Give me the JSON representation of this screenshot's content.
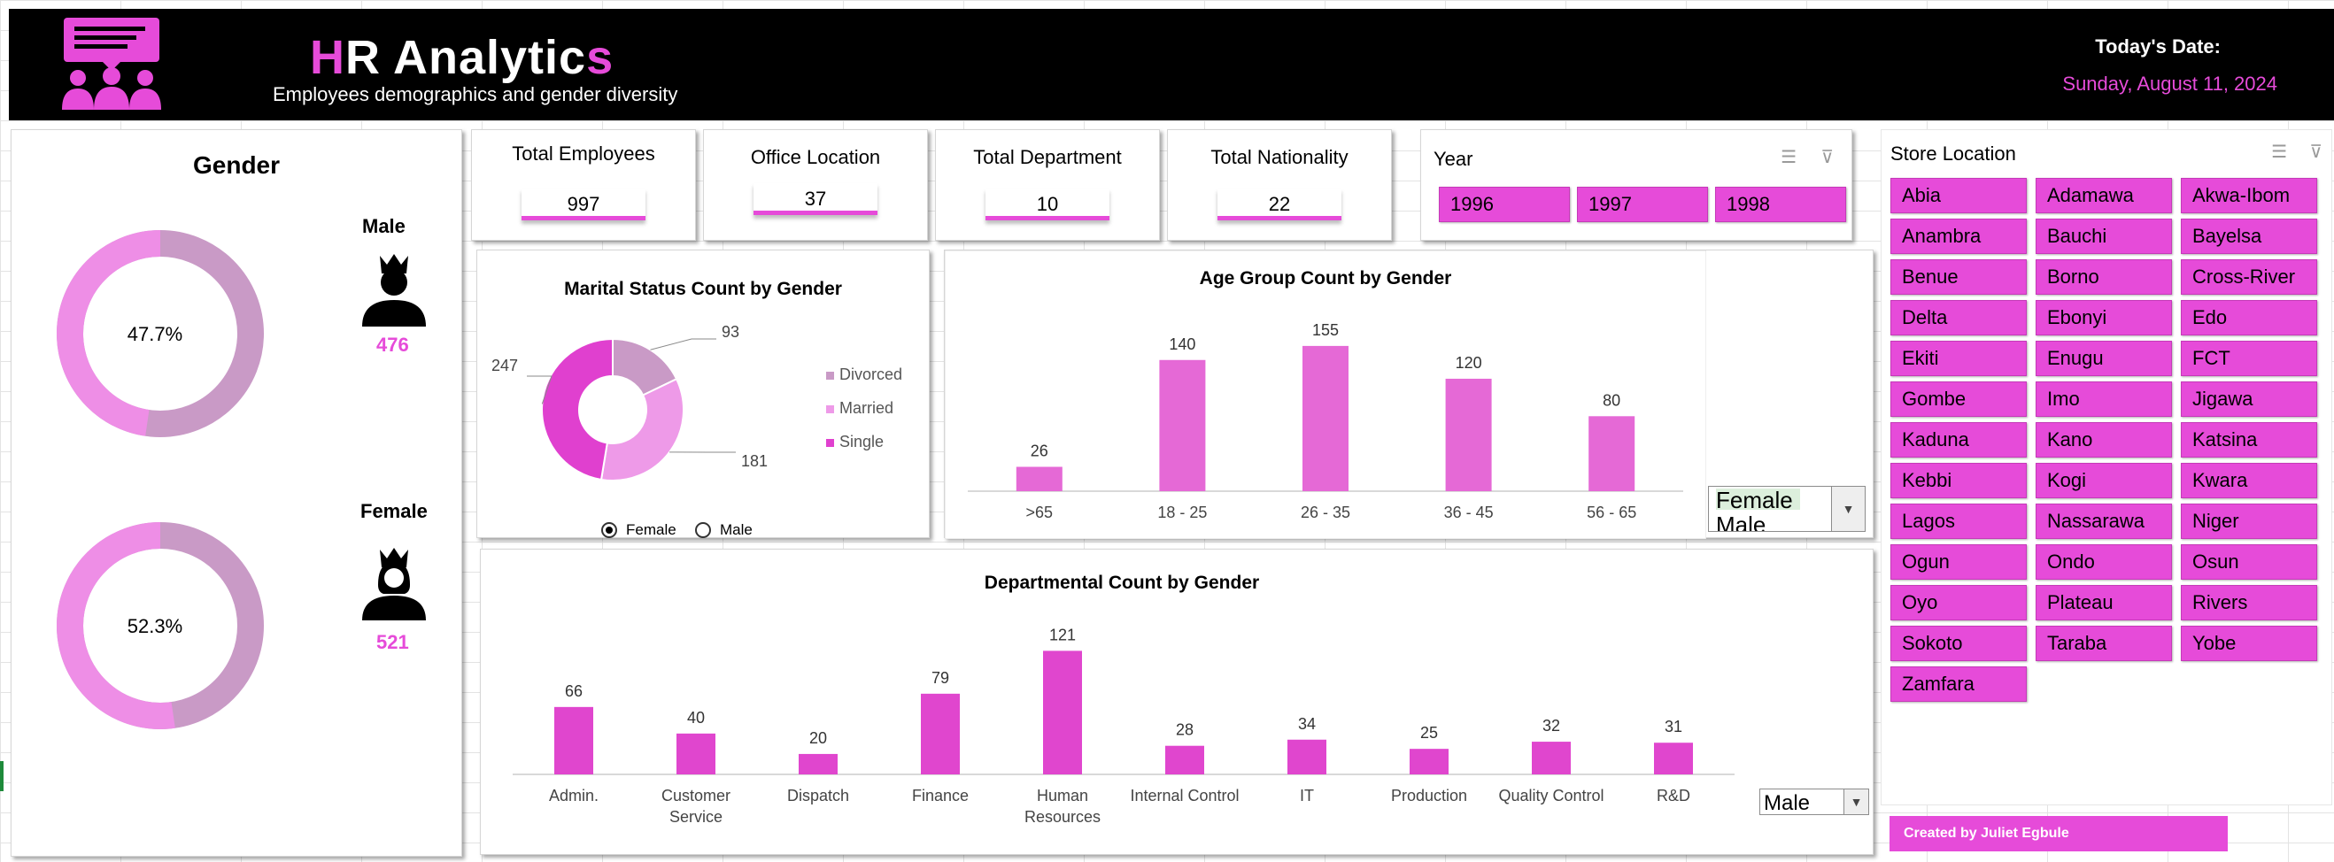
{
  "header": {
    "title_parts": [
      "H",
      "R Analytic",
      "s"
    ],
    "subtitle": "Employees demographics and gender diversity",
    "date_label": "Today's Date:",
    "date_value": "Sunday, August 11, 2024",
    "logo_icon": "group-presentation-icon"
  },
  "gender_panel": {
    "title": "Gender",
    "male": {
      "label": "Male",
      "count": "476",
      "percent_label": "47.7%",
      "percent": 47.7,
      "icon": "male-person-crown-icon"
    },
    "female": {
      "label": "Female",
      "count": "521",
      "percent_label": "52.3%",
      "percent": 52.3,
      "icon": "female-person-crown-icon"
    }
  },
  "kpis": [
    {
      "label": "Total Employees",
      "value": "997"
    },
    {
      "label": "Office Location",
      "value": "37"
    },
    {
      "label": "Total Department",
      "value": "10"
    },
    {
      "label": "Total Nationality",
      "value": "22"
    }
  ],
  "year_slicer": {
    "title": "Year",
    "items": [
      "1996",
      "1997",
      "1998"
    ],
    "icons": [
      "multi-select-icon",
      "clear-filter-icon"
    ]
  },
  "store_slicer": {
    "title": "Store Location",
    "icons": [
      "multi-select-icon",
      "clear-filter-icon"
    ],
    "items": [
      "Abia",
      "Adamawa",
      "Akwa-Ibom",
      "Anambra",
      "Bauchi",
      "Bayelsa",
      "Benue",
      "Borno",
      "Cross-River",
      "Delta",
      "Ebonyi",
      "Edo",
      "Ekiti",
      "Enugu",
      "FCT",
      "Gombe",
      "Imo",
      "Jigawa",
      "Kaduna",
      "Kano",
      "Katsina",
      "Kebbi",
      "Kogi",
      "Kwara",
      "Lagos",
      "Nassarawa",
      "Niger",
      "Ogun",
      "Ondo",
      "Osun",
      "Oyo",
      "Plateau",
      "Rivers",
      "Sokoto",
      "Taraba",
      "Yobe",
      "Zamfara"
    ]
  },
  "marital_controls": {
    "options": [
      {
        "label": "Female",
        "selected": true
      },
      {
        "label": "Male",
        "selected": false
      }
    ]
  },
  "age_dropdown": {
    "selected": "Female",
    "next_option": "Male"
  },
  "dept_dropdown": {
    "selected": "Male"
  },
  "credit": "Created by Juliet  Egbule",
  "colors": {
    "accent": "#e64bd9",
    "muted": "#c99ac6",
    "light": "#ee9ae8",
    "banner": "#000000"
  },
  "chart_data": [
    {
      "type": "pie",
      "title": "Marital Status Count by Gender",
      "categories": [
        "Divorced",
        "Married",
        "Single"
      ],
      "values": [
        93,
        181,
        247
      ],
      "colors": [
        "#c99ac6",
        "#ee9ae8",
        "#e040cf"
      ]
    },
    {
      "type": "bar",
      "title": "Age Group Count by Gender",
      "categories": [
        ">65",
        "18 - 25",
        "26 - 35",
        "36 - 45",
        "56 - 65"
      ],
      "values": [
        26,
        140,
        155,
        120,
        80
      ],
      "ylim": [
        0,
        170
      ]
    },
    {
      "type": "bar",
      "title": "Departmental Count by Gender",
      "categories": [
        "Admin.",
        "Customer Service",
        "Dispatch",
        "Finance",
        "Human Resources",
        "Internal Control",
        "IT",
        "Production",
        "Quality Control",
        "R&D"
      ],
      "values": [
        66,
        40,
        20,
        79,
        121,
        28,
        34,
        25,
        32,
        31
      ],
      "ylim": [
        0,
        130
      ]
    }
  ]
}
